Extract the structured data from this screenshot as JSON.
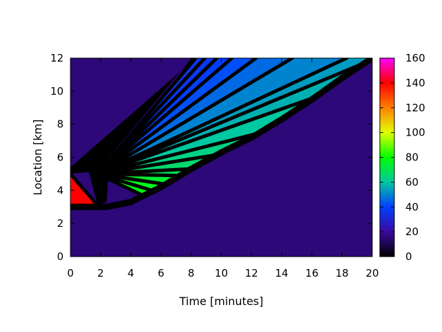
{
  "chart_data": {
    "type": "heatmap",
    "title": "",
    "xlabel": "Time [minutes]",
    "ylabel": "Location [km]",
    "xlim": [
      0,
      20
    ],
    "ylim": [
      0,
      12
    ],
    "xticks": [
      0,
      2,
      4,
      6,
      8,
      10,
      12,
      14,
      16,
      18,
      20
    ],
    "yticks": [
      0,
      2,
      4,
      6,
      8,
      10,
      12
    ],
    "colorbar": {
      "range": [
        0,
        160
      ],
      "ticks": [
        0,
        20,
        40,
        60,
        80,
        100,
        120,
        140,
        160
      ],
      "palette": [
        "#000000",
        "#3a0aa0",
        "#0040ff",
        "#00c8a0",
        "#00ff00",
        "#e0ff00",
        "#ff8000",
        "#ff0000",
        "#ff00ff"
      ]
    },
    "background_value": 15,
    "queue_region": {
      "description_value": 140,
      "vertices": [
        [
          0,
          3.1
        ],
        [
          0,
          5.0
        ],
        [
          1.8,
          3.1
        ]
      ]
    },
    "shock_front": [
      [
        0,
        3.0
      ],
      [
        2.4,
        3.0
      ],
      [
        4.0,
        3.3
      ],
      [
        6.0,
        4.2
      ],
      [
        8.0,
        5.3
      ],
      [
        10.0,
        6.3
      ],
      [
        12.0,
        7.2
      ],
      [
        14.0,
        8.3
      ],
      [
        16.0,
        9.5
      ],
      [
        18.0,
        10.8
      ],
      [
        20.0,
        12.0
      ]
    ],
    "fan_origin": [
      1.8,
      5.0
    ],
    "fan_rays": [
      {
        "end": [
          8.3,
          12.0
        ],
        "value": 35
      },
      {
        "end": [
          8.9,
          12.0
        ],
        "value": 36
      },
      {
        "end": [
          9.7,
          12.0
        ],
        "value": 38
      },
      {
        "end": [
          10.7,
          12.0
        ],
        "value": 40
      },
      {
        "end": [
          12.3,
          12.0
        ],
        "value": 44
      },
      {
        "end": [
          14.7,
          12.0
        ],
        "value": 48
      },
      {
        "end": [
          18.3,
          12.0
        ],
        "value": 52
      },
      {
        "end": [
          20.0,
          11.9
        ],
        "value": 55
      },
      {
        "end": [
          16.1,
          9.6
        ],
        "value": 58
      },
      {
        "end": [
          12.2,
          7.4
        ],
        "value": 62
      },
      {
        "end": [
          10.0,
          6.2
        ],
        "value": 65
      },
      {
        "end": [
          7.9,
          5.3
        ],
        "value": 68
      },
      {
        "end": [
          7.0,
          4.9
        ],
        "value": 72
      },
      {
        "end": [
          6.1,
          4.4
        ],
        "value": 75
      },
      {
        "end": [
          5.4,
          4.0
        ],
        "value": 78
      },
      {
        "end": [
          4.8,
          3.7
        ],
        "value": 80
      }
    ]
  }
}
